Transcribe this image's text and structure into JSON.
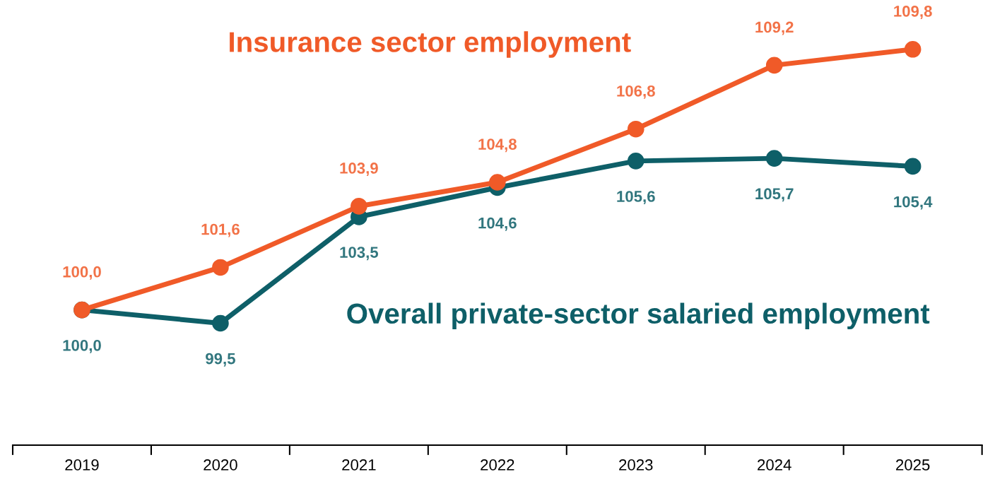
{
  "chart_data": {
    "type": "line",
    "categories": [
      "2019",
      "2020",
      "2021",
      "2022",
      "2023",
      "2024",
      "2025"
    ],
    "series": [
      {
        "name": "Insurance sector employment",
        "color": "#f05a28",
        "values": [
          100.0,
          101.6,
          103.9,
          104.8,
          106.8,
          109.2,
          109.8
        ],
        "value_labels": [
          "100,0",
          "101,6",
          "103,9",
          "104,8",
          "106,8",
          "109,2",
          "109,8"
        ]
      },
      {
        "name": "Overall private-sector salaried employment",
        "color": "#0e5f68",
        "values": [
          100.0,
          99.5,
          103.5,
          104.6,
          105.6,
          105.7,
          105.4
        ],
        "value_labels": [
          "100,0",
          "99,5",
          "103,5",
          "104,6",
          "105,6",
          "105,7",
          "105,4"
        ]
      }
    ],
    "tick_labels": "x",
    "marker": "circle",
    "line_style": "solid",
    "grid": false,
    "legend": false
  }
}
